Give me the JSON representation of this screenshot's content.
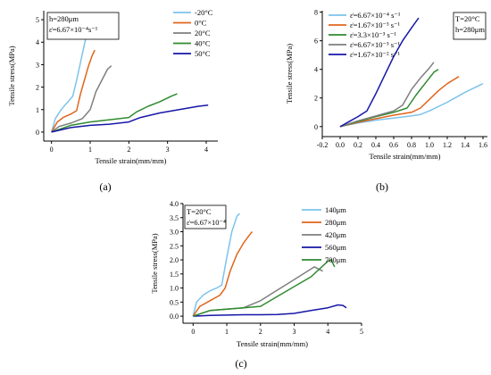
{
  "chart_data": [
    {
      "type": "line",
      "panel_label": "(a)",
      "xlabel": "Tensile strain(mm/mm)",
      "ylabel": "Tensile stress(MPa)",
      "xlim": [
        -0.2,
        4.3
      ],
      "ylim": [
        -0.4,
        5.4
      ],
      "xticks": [
        0,
        1,
        2,
        3,
        4
      ],
      "yticks": [
        0,
        1,
        2,
        3,
        4,
        5
      ],
      "conditions": [
        "h=280μm",
        "ε̇=6.67×10⁻⁴s⁻¹"
      ],
      "legend_position": "top-right",
      "series": [
        {
          "name": "-20°C",
          "color": "#7cc3ec",
          "x": [
            0,
            0.1,
            0.25,
            0.4,
            0.55,
            0.65,
            0.75,
            0.85,
            0.95,
            1.02
          ],
          "y": [
            0,
            0.6,
            1.0,
            1.3,
            1.6,
            2.3,
            3.1,
            3.9,
            4.6,
            5.2
          ]
        },
        {
          "name": "0°C",
          "color": "#e0651c",
          "x": [
            0,
            0.15,
            0.3,
            0.5,
            0.65,
            0.75,
            0.85,
            0.95,
            1.05,
            1.12
          ],
          "y": [
            0,
            0.45,
            0.65,
            0.8,
            0.95,
            1.7,
            2.3,
            2.9,
            3.4,
            3.65
          ]
        },
        {
          "name": "20°C",
          "color": "#7f7f7f",
          "x": [
            0,
            0.2,
            0.5,
            0.8,
            1.0,
            1.15,
            1.3,
            1.45,
            1.55
          ],
          "y": [
            0,
            0.25,
            0.4,
            0.6,
            1.0,
            1.8,
            2.3,
            2.8,
            2.95
          ]
        },
        {
          "name": "40°C",
          "color": "#2f8a2f",
          "x": [
            0,
            0.5,
            1.0,
            1.5,
            2.0,
            2.2,
            2.5,
            2.8,
            3.1,
            3.25
          ],
          "y": [
            0,
            0.3,
            0.45,
            0.55,
            0.65,
            0.9,
            1.15,
            1.35,
            1.6,
            1.7
          ]
        },
        {
          "name": "50°C",
          "color": "#1616a8",
          "x": [
            0,
            0.5,
            1.0,
            1.5,
            2.0,
            2.3,
            2.8,
            3.3,
            3.8,
            4.05
          ],
          "y": [
            0,
            0.2,
            0.3,
            0.35,
            0.45,
            0.65,
            0.85,
            1.0,
            1.15,
            1.2
          ]
        }
      ]
    },
    {
      "type": "line",
      "panel_label": "(b)",
      "xlabel": "Tensile strain(mm/mm)",
      "ylabel": "Tensile stress(MPa)",
      "xlim": [
        -0.2,
        1.65
      ],
      "ylim": [
        -0.7,
        8.1
      ],
      "xticks": [
        -0.2,
        0.0,
        0.2,
        0.4,
        0.6,
        0.8,
        1.0,
        1.2,
        1.4,
        1.6
      ],
      "yticks": [
        0,
        2,
        4,
        6,
        8
      ],
      "conditions": [
        "T=20°C",
        "h=280μm"
      ],
      "legend_position": "top-left",
      "series": [
        {
          "name": "ε̇=6.67×10⁻⁴ s⁻¹",
          "color": "#7cc3ec",
          "x": [
            0,
            0.2,
            0.4,
            0.6,
            0.8,
            0.9,
            1.0,
            1.2,
            1.4,
            1.6
          ],
          "y": [
            0,
            0.25,
            0.45,
            0.6,
            0.75,
            0.85,
            1.1,
            1.7,
            2.4,
            3.0
          ]
        },
        {
          "name": "ε̇=1.67×10⁻³ s⁻¹",
          "color": "#e0651c",
          "x": [
            0,
            0.2,
            0.4,
            0.6,
            0.8,
            0.9,
            1.0,
            1.1,
            1.2,
            1.33
          ],
          "y": [
            0,
            0.3,
            0.55,
            0.8,
            1.0,
            1.3,
            1.9,
            2.5,
            3.0,
            3.5
          ]
        },
        {
          "name": "ε̇=3.3×10⁻³ s⁻¹",
          "color": "#2f8a2f",
          "x": [
            0,
            0.2,
            0.4,
            0.6,
            0.75,
            0.85,
            0.95,
            1.05,
            1.1
          ],
          "y": [
            0,
            0.35,
            0.7,
            1.0,
            1.3,
            2.2,
            3.0,
            3.8,
            4.0
          ]
        },
        {
          "name": "ε̇=6.67×10⁻³ s⁻¹",
          "color": "#7f7f7f",
          "x": [
            0,
            0.2,
            0.4,
            0.6,
            0.7,
            0.8,
            0.9,
            1.0,
            1.05
          ],
          "y": [
            0,
            0.4,
            0.75,
            1.1,
            1.5,
            2.6,
            3.4,
            4.1,
            4.5
          ]
        },
        {
          "name": "ε̇=1.67×10⁻² s⁻¹",
          "color": "#1616a8",
          "x": [
            0,
            0.1,
            0.2,
            0.3,
            0.4,
            0.5,
            0.6,
            0.7,
            0.8,
            0.88
          ],
          "y": [
            0,
            0.35,
            0.7,
            1.1,
            2.3,
            3.6,
            4.9,
            6.0,
            6.9,
            7.6
          ]
        }
      ]
    },
    {
      "type": "line",
      "panel_label": "(c)",
      "xlabel": "Tensile strain(mm/mm)",
      "ylabel": "Tensile stress(MPa)",
      "xlim": [
        -0.3,
        5.0
      ],
      "ylim": [
        -0.25,
        4.0
      ],
      "xticks": [
        0,
        1,
        2,
        3,
        4,
        5
      ],
      "yticks": [
        0.0,
        0.5,
        1.0,
        1.5,
        2.0,
        2.5,
        3.0,
        3.5,
        4.0
      ],
      "conditions": [
        "T=20°C",
        "ε̇=6.67×10⁻⁴"
      ],
      "legend_position": "top-right",
      "series": [
        {
          "name": "140μm",
          "color": "#7cc3ec",
          "x": [
            0,
            0.1,
            0.3,
            0.5,
            0.7,
            0.85,
            1.0,
            1.15,
            1.3,
            1.38
          ],
          "y": [
            0,
            0.5,
            0.75,
            0.9,
            1.0,
            1.1,
            2.1,
            3.0,
            3.55,
            3.65
          ]
        },
        {
          "name": "280μm",
          "color": "#e0651c",
          "x": [
            0,
            0.2,
            0.5,
            0.8,
            0.95,
            1.1,
            1.3,
            1.5,
            1.65,
            1.75
          ],
          "y": [
            0,
            0.35,
            0.55,
            0.75,
            1.0,
            1.6,
            2.2,
            2.6,
            2.85,
            3.0
          ]
        },
        {
          "name": "420μm",
          "color": "#7f7f7f",
          "x": [
            0,
            0.5,
            1.0,
            1.5,
            2.0,
            2.4,
            2.8,
            3.2,
            3.6,
            3.85
          ],
          "y": [
            0,
            0.2,
            0.25,
            0.3,
            0.55,
            0.85,
            1.15,
            1.45,
            1.75,
            1.6
          ]
        },
        {
          "name": "560μm",
          "color": "#1616a8",
          "x": [
            0,
            0.5,
            1.0,
            1.5,
            2.0,
            2.5,
            3.0,
            3.5,
            4.0,
            4.3,
            4.45,
            4.55
          ],
          "y": [
            0,
            0.03,
            0.04,
            0.05,
            0.05,
            0.06,
            0.1,
            0.2,
            0.3,
            0.4,
            0.38,
            0.3
          ]
        },
        {
          "name": "700μm",
          "color": "#2f8a2f",
          "x": [
            0,
            0.5,
            1.0,
            1.5,
            2.0,
            2.5,
            3.0,
            3.5,
            4.0,
            4.1,
            4.2
          ],
          "y": [
            0,
            0.2,
            0.25,
            0.3,
            0.35,
            0.7,
            1.05,
            1.4,
            1.95,
            2.0,
            1.75
          ]
        }
      ]
    }
  ]
}
